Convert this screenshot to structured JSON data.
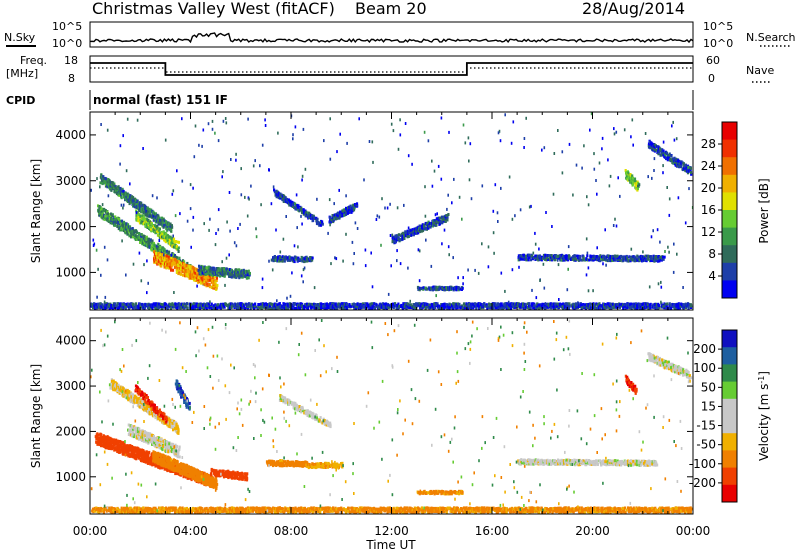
{
  "header": {
    "title": "Christmas Valley West (fitACF)",
    "beam": "Beam 20",
    "date": "28/Aug/2014"
  },
  "noise_panel": {
    "left_label": "N.Sky",
    "right_label": "N.Search",
    "left_ticks": [
      "10^5",
      "10^0"
    ],
    "right_ticks": [
      "10^5",
      "10^0"
    ]
  },
  "freq_panel": {
    "left_label_1": "Freq.",
    "left_label_2": "[MHz]",
    "right_label": "Nave",
    "left_ticks": [
      "18",
      "8"
    ],
    "right_ticks": [
      "60",
      "0"
    ]
  },
  "cpid": {
    "label": "CPID",
    "value": "normal (fast) 151 IF"
  },
  "colors": {
    "power_scale": [
      "#0000f0",
      "#1e3fa8",
      "#2f6b5a",
      "#3a9a4a",
      "#66cc33",
      "#e0e000",
      "#f0b000",
      "#f07000",
      "#f03000",
      "#e80000"
    ],
    "velocity_scale": [
      "#e80000",
      "#f04000",
      "#f08000",
      "#f0b000",
      "#c8c8c8",
      "#c8c8c8",
      "#66cc33",
      "#2f8a4a",
      "#1e5fa0",
      "#1010c0"
    ]
  },
  "chart_data": [
    {
      "type": "heatmap",
      "name": "power",
      "ylabel": "Slant Range [km]",
      "colorbar_label": "Power [dB]",
      "colorbar_ticks": [
        "28",
        "24",
        "20",
        "16",
        "12",
        "8",
        "4"
      ],
      "colorbar_range": [
        0,
        32
      ],
      "x_ticks": [
        "00:00",
        "04:00",
        "08:00",
        "12:00",
        "16:00",
        "20:00",
        "00:00"
      ],
      "x_range_hours": [
        0,
        24
      ],
      "y_ticks": [
        1000,
        2000,
        3000,
        4000
      ],
      "y_range": [
        180,
        4500
      ],
      "features": [
        {
          "t0": 0.3,
          "t1": 4.5,
          "r0": 2400,
          "r1": 900,
          "w": 220,
          "level": 10
        },
        {
          "t0": 0.4,
          "t1": 3.2,
          "r0": 3100,
          "r1": 2000,
          "w": 200,
          "level": 8
        },
        {
          "t0": 2.5,
          "t1": 5.0,
          "r0": 1400,
          "r1": 800,
          "w": 280,
          "level": 22
        },
        {
          "t0": 1.8,
          "t1": 3.5,
          "r0": 2300,
          "r1": 1600,
          "w": 200,
          "level": 14
        },
        {
          "t0": 4.3,
          "t1": 6.3,
          "r0": 1100,
          "r1": 1000,
          "w": 180,
          "level": 8
        },
        {
          "t0": 7.2,
          "t1": 8.8,
          "r0": 1350,
          "r1": 1330,
          "w": 110,
          "level": 6
        },
        {
          "t0": 7.3,
          "t1": 9.2,
          "r0": 2800,
          "r1": 2100,
          "w": 130,
          "level": 5
        },
        {
          "t0": 9.5,
          "t1": 10.6,
          "r0": 2200,
          "r1": 2500,
          "w": 150,
          "level": 5
        },
        {
          "t0": 12.0,
          "t1": 14.2,
          "r0": 1750,
          "r1": 2250,
          "w": 150,
          "level": 5
        },
        {
          "t0": 13.0,
          "t1": 14.8,
          "r0": 700,
          "r1": 700,
          "w": 70,
          "level": 6
        },
        {
          "t0": 17.0,
          "t1": 22.8,
          "r0": 1380,
          "r1": 1350,
          "w": 120,
          "level": 5
        },
        {
          "t0": 21.3,
          "t1": 21.8,
          "r0": 3200,
          "r1": 2900,
          "w": 200,
          "level": 14
        },
        {
          "t0": 22.2,
          "t1": 23.9,
          "r0": 3850,
          "r1": 3250,
          "w": 170,
          "level": 5
        },
        {
          "t0": 0.0,
          "t1": 24.0,
          "r0": 300,
          "r1": 300,
          "w": 150,
          "level": 4
        }
      ]
    },
    {
      "type": "heatmap",
      "name": "velocity",
      "ylabel": "Slant Range [km]",
      "colorbar_label": "Velocity [m s^-1]",
      "colorbar_ticks": [
        "200",
        "100",
        "50",
        "15",
        "-15",
        "-50",
        "-100",
        "-200"
      ],
      "colorbar_range": [
        -250,
        250
      ],
      "x_ticks": [
        "00:00",
        "04:00",
        "08:00",
        "12:00",
        "16:00",
        "20:00",
        "00:00"
      ],
      "xlabel": "Time UT",
      "x_range_hours": [
        0,
        24
      ],
      "y_ticks": [
        1000,
        2000,
        3000,
        4000
      ],
      "y_range": [
        180,
        4500
      ],
      "features": [
        {
          "t0": 0.2,
          "t1": 4.8,
          "r0": 1900,
          "r1": 950,
          "w": 260,
          "vel": -160
        },
        {
          "t0": 0.8,
          "t1": 3.5,
          "r0": 3100,
          "r1": 2100,
          "w": 200,
          "vel": -20
        },
        {
          "t0": 1.5,
          "t1": 3.5,
          "r0": 2100,
          "r1": 1600,
          "w": 240,
          "vel": 0
        },
        {
          "t0": 1.8,
          "t1": 3.0,
          "r0": 3000,
          "r1": 2300,
          "w": 150,
          "vel": -200
        },
        {
          "t0": 2.5,
          "t1": 5.0,
          "r0": 1500,
          "r1": 900,
          "w": 250,
          "vel": -80
        },
        {
          "t0": 3.4,
          "t1": 3.9,
          "r0": 3100,
          "r1": 2600,
          "w": 200,
          "vel": 200
        },
        {
          "t0": 4.8,
          "t1": 6.2,
          "r0": 1150,
          "r1": 1050,
          "w": 150,
          "vel": -130
        },
        {
          "t0": 7.0,
          "t1": 8.6,
          "r0": 1350,
          "r1": 1330,
          "w": 110,
          "vel": -80
        },
        {
          "t0": 8.6,
          "t1": 10.0,
          "r0": 1300,
          "r1": 1300,
          "w": 100,
          "vel": -40
        },
        {
          "t0": 7.5,
          "t1": 9.5,
          "r0": 2800,
          "r1": 2200,
          "w": 130,
          "vel": 0
        },
        {
          "t0": 17.0,
          "t1": 22.5,
          "r0": 1380,
          "r1": 1350,
          "w": 110,
          "vel": 0
        },
        {
          "t0": 21.3,
          "t1": 21.7,
          "r0": 3200,
          "r1": 2950,
          "w": 160,
          "vel": -200
        },
        {
          "t0": 22.2,
          "t1": 23.8,
          "r0": 3700,
          "r1": 3300,
          "w": 170,
          "vel": 0
        },
        {
          "t0": 13.0,
          "t1": 14.8,
          "r0": 700,
          "r1": 700,
          "w": 60,
          "vel": -60
        },
        {
          "t0": 0.0,
          "t1": 24.0,
          "r0": 300,
          "r1": 300,
          "w": 140,
          "vel": -60
        }
      ]
    }
  ]
}
